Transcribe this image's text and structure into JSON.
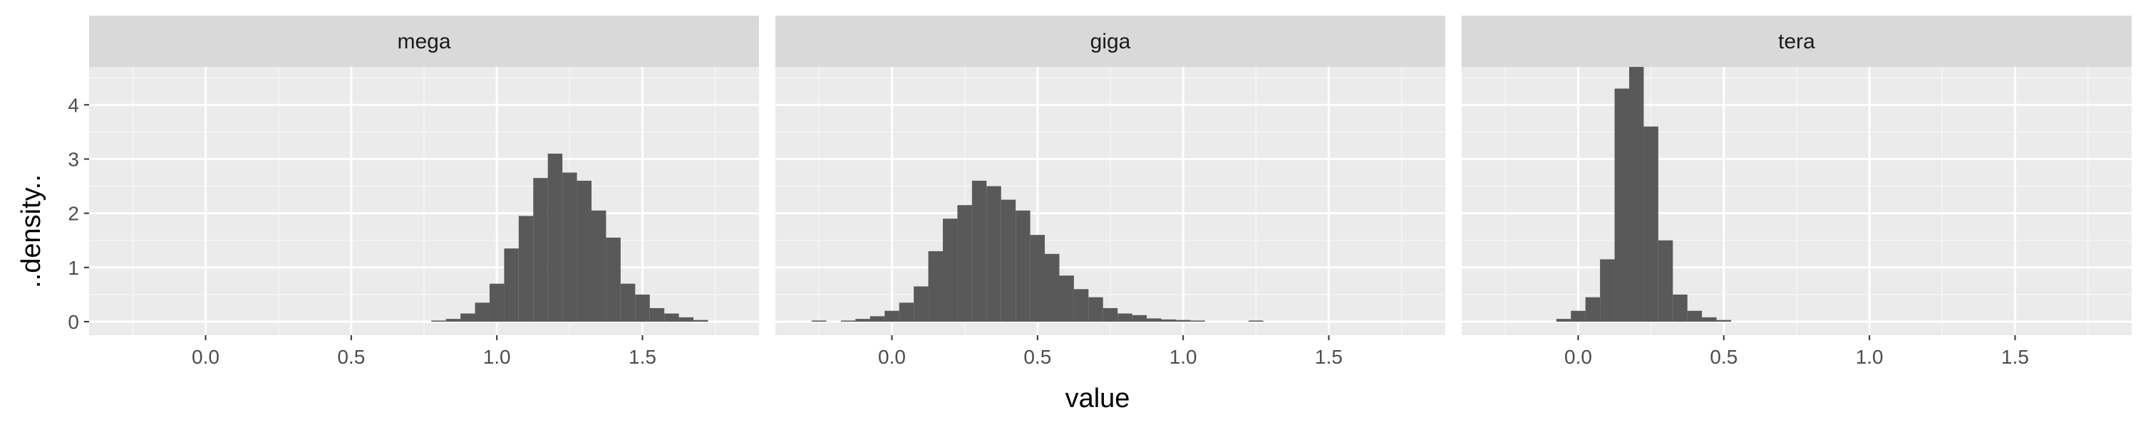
{
  "chart_data": {
    "type": "bar",
    "xlabel": "value",
    "ylabel": "..density..",
    "xlim": [
      -0.4,
      1.9
    ],
    "ylim": [
      -0.25,
      4.7
    ],
    "x_ticks": [
      0.0,
      0.5,
      1.0,
      1.5
    ],
    "x_tick_labels": [
      "0.0",
      "0.5",
      "1.0",
      "1.5"
    ],
    "y_ticks": [
      0,
      1,
      2,
      3,
      4
    ],
    "y_tick_labels": [
      "0",
      "1",
      "2",
      "3",
      "4"
    ],
    "bin_width": 0.05,
    "grid": true,
    "bar_color": "#595959",
    "panel_background": "#ebebeb",
    "strip_background": "#d9d9d9",
    "panels": [
      {
        "name": "mega",
        "bins": [
          {
            "x": 0.8,
            "density": 0.02
          },
          {
            "x": 0.85,
            "density": 0.05
          },
          {
            "x": 0.9,
            "density": 0.15
          },
          {
            "x": 0.95,
            "density": 0.35
          },
          {
            "x": 1.0,
            "density": 0.7
          },
          {
            "x": 1.05,
            "density": 1.35
          },
          {
            "x": 1.1,
            "density": 1.95
          },
          {
            "x": 1.15,
            "density": 2.65
          },
          {
            "x": 1.2,
            "density": 3.1
          },
          {
            "x": 1.25,
            "density": 2.75
          },
          {
            "x": 1.3,
            "density": 2.6
          },
          {
            "x": 1.35,
            "density": 2.05
          },
          {
            "x": 1.4,
            "density": 1.55
          },
          {
            "x": 1.45,
            "density": 0.7
          },
          {
            "x": 1.5,
            "density": 0.5
          },
          {
            "x": 1.55,
            "density": 0.25
          },
          {
            "x": 1.6,
            "density": 0.15
          },
          {
            "x": 1.65,
            "density": 0.08
          },
          {
            "x": 1.7,
            "density": 0.03
          }
        ]
      },
      {
        "name": "giga",
        "bins": [
          {
            "x": -0.25,
            "density": 0.02
          },
          {
            "x": -0.15,
            "density": 0.02
          },
          {
            "x": -0.1,
            "density": 0.05
          },
          {
            "x": -0.05,
            "density": 0.1
          },
          {
            "x": 0.0,
            "density": 0.2
          },
          {
            "x": 0.05,
            "density": 0.35
          },
          {
            "x": 0.1,
            "density": 0.65
          },
          {
            "x": 0.15,
            "density": 1.3
          },
          {
            "x": 0.2,
            "density": 1.9
          },
          {
            "x": 0.25,
            "density": 2.15
          },
          {
            "x": 0.3,
            "density": 2.6
          },
          {
            "x": 0.35,
            "density": 2.5
          },
          {
            "x": 0.4,
            "density": 2.25
          },
          {
            "x": 0.45,
            "density": 2.05
          },
          {
            "x": 0.5,
            "density": 1.6
          },
          {
            "x": 0.55,
            "density": 1.25
          },
          {
            "x": 0.6,
            "density": 0.85
          },
          {
            "x": 0.65,
            "density": 0.6
          },
          {
            "x": 0.7,
            "density": 0.45
          },
          {
            "x": 0.75,
            "density": 0.25
          },
          {
            "x": 0.8,
            "density": 0.15
          },
          {
            "x": 0.85,
            "density": 0.12
          },
          {
            "x": 0.9,
            "density": 0.06
          },
          {
            "x": 0.95,
            "density": 0.04
          },
          {
            "x": 1.0,
            "density": 0.03
          },
          {
            "x": 1.05,
            "density": 0.02
          },
          {
            "x": 1.25,
            "density": 0.02
          }
        ]
      },
      {
        "name": "tera",
        "bins": [
          {
            "x": -0.05,
            "density": 0.05
          },
          {
            "x": 0.0,
            "density": 0.2
          },
          {
            "x": 0.05,
            "density": 0.45
          },
          {
            "x": 0.1,
            "density": 1.15
          },
          {
            "x": 0.15,
            "density": 4.3
          },
          {
            "x": 0.2,
            "density": 4.75
          },
          {
            "x": 0.25,
            "density": 3.6
          },
          {
            "x": 0.3,
            "density": 1.5
          },
          {
            "x": 0.35,
            "density": 0.5
          },
          {
            "x": 0.4,
            "density": 0.2
          },
          {
            "x": 0.45,
            "density": 0.08
          },
          {
            "x": 0.5,
            "density": 0.03
          }
        ]
      }
    ]
  }
}
